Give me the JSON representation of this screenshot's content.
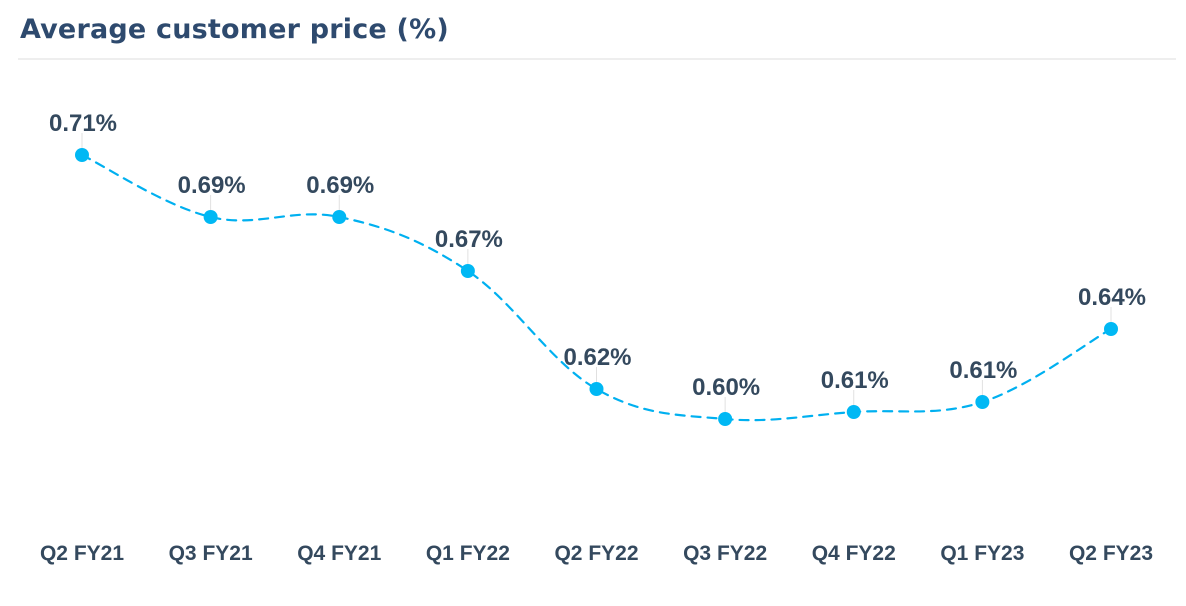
{
  "header": {
    "title": "Average customer price (%)"
  },
  "colors": {
    "line": "#00b0f0",
    "marker": "#00b8f4",
    "label_text": "#34495e",
    "title_text": "#2e4a6e",
    "divider": "#eeeeee",
    "leader": "#e0e0e0"
  },
  "chart_data": {
    "type": "line",
    "title": "Average customer price (%)",
    "xlabel": "",
    "ylabel": "",
    "categories": [
      "Q2 FY21",
      "Q3 FY21",
      "Q4 FY21",
      "Q1 FY22",
      "Q2 FY22",
      "Q3 FY22",
      "Q4 FY22",
      "Q1 FY23",
      "Q2 FY23"
    ],
    "series": [
      {
        "name": "Average customer price (%)",
        "values": [
          0.71,
          0.69,
          0.69,
          0.67,
          0.62,
          0.6,
          0.61,
          0.61,
          0.64
        ],
        "labels": [
          "0.71%",
          "0.69%",
          "0.69%",
          "0.67%",
          "0.62%",
          "0.60%",
          "0.61%",
          "0.61%",
          "0.64%"
        ],
        "line_style": "dashed",
        "smooth": true,
        "markers": true
      }
    ],
    "grid": false,
    "y_axis_visible": false,
    "legend": "none",
    "data_labels": true
  }
}
